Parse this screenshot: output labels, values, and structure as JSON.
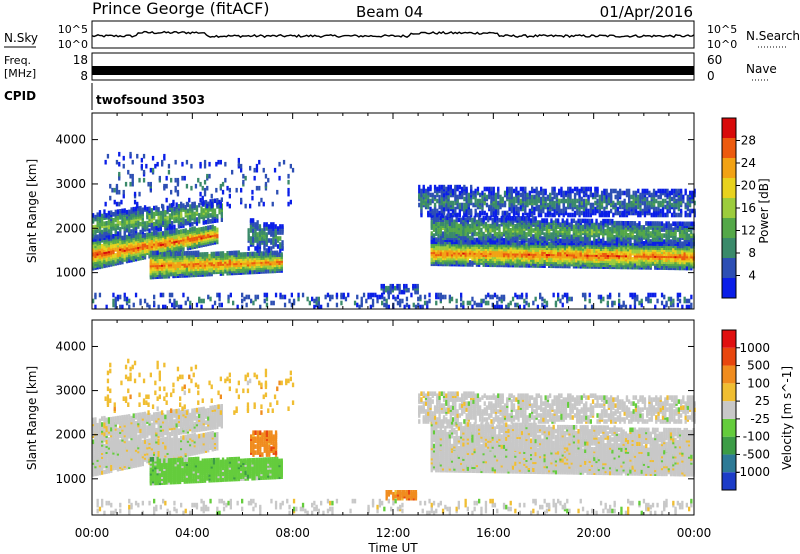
{
  "header": {
    "station": "Prince George (fitACF)",
    "beam": "Beam 04",
    "date": "01/Apr/2016"
  },
  "strip_labels": {
    "nsky": "N.Sky",
    "nsky_ticks": [
      "10^5",
      "10^0"
    ],
    "nsearch": "N.Search",
    "nsearch_ticks": [
      "10^5",
      "10^0"
    ],
    "freq_line1": "Freq.",
    "freq_line2": "[MHz]",
    "freq_ticks": [
      "18",
      "8"
    ],
    "nave": "Nave",
    "nave_ticks": [
      "60",
      "0"
    ],
    "cpid": "CPID",
    "cpid_value": "twofsound 3503"
  },
  "chart_data": [
    {
      "type": "heatmap",
      "quantity": "Power",
      "ylabel": "Slant Range [km]",
      "yticks": [
        "1000",
        "2000",
        "3000",
        "4000"
      ],
      "ylim": [
        180,
        4600
      ],
      "colorbar_label": "Power [dB]",
      "colorbar_ticks": [
        "4",
        "8",
        "12",
        "16",
        "20",
        "24",
        "28"
      ],
      "colorbar_range": [
        0,
        32
      ],
      "colormap": [
        "#0a1ee8",
        "#2d4fb4",
        "#3a8a6a",
        "#54a848",
        "#9ccc3c",
        "#e8d21e",
        "#f2a214",
        "#ec5a0e",
        "#d80a0a"
      ],
      "bands": [
        {
          "t0": 0.0,
          "t1": 5.0,
          "r_lo": 1100,
          "r_hi": 1750,
          "r_lo2": 1700,
          "r_hi2": 2050,
          "peak": 28,
          "dens": 0.95
        },
        {
          "t0": 0.0,
          "t1": 5.2,
          "r_lo": 1750,
          "r_hi": 2350,
          "r_lo2": 2200,
          "r_hi2": 2650,
          "peak": 14,
          "dens": 0.7
        },
        {
          "t0": 2.3,
          "t1": 7.6,
          "r_lo": 900,
          "r_hi": 1450,
          "r_lo2": 1050,
          "r_hi2": 1450,
          "peak": 26,
          "dens": 0.95
        },
        {
          "t0": 6.2,
          "t1": 7.6,
          "r_lo": 1500,
          "r_hi": 2200,
          "r_lo2": 1500,
          "r_hi2": 2050,
          "peak": 10,
          "dens": 0.55
        },
        {
          "t0": 13.5,
          "t1": 24.0,
          "r_lo": 1200,
          "r_hi": 1700,
          "r_lo2": 1100,
          "r_hi2": 1650,
          "peak": 27,
          "dens": 0.95
        },
        {
          "t0": 13.5,
          "t1": 24.0,
          "r_lo": 1700,
          "r_hi": 2300,
          "r_lo2": 1650,
          "r_hi2": 2100,
          "peak": 13,
          "dens": 0.75
        },
        {
          "t0": 13.0,
          "t1": 24.0,
          "r_lo": 2300,
          "r_hi": 2950,
          "r_lo2": 2300,
          "r_hi2": 2850,
          "peak": 9,
          "dens": 0.55
        },
        {
          "t0": 11.5,
          "t1": 13.0,
          "r_lo": 560,
          "r_hi": 700,
          "r_lo2": 560,
          "r_hi2": 700,
          "peak": 9,
          "dens": 0.6
        },
        {
          "t0": 0.5,
          "t1": 8.0,
          "r_lo": 2500,
          "r_hi": 3700,
          "r_lo2": 2500,
          "r_hi2": 3500,
          "peak": 7,
          "dens": 0.08
        },
        {
          "t0": 0.0,
          "t1": 24.0,
          "r_lo": 180,
          "r_hi": 520,
          "r_lo2": 180,
          "r_hi2": 520,
          "peak": 8,
          "dens": 0.18
        }
      ]
    },
    {
      "type": "heatmap",
      "quantity": "Velocity",
      "ylabel": "Slant Range [km]",
      "yticks": [
        "1000",
        "2000",
        "3000",
        "4000"
      ],
      "ylim": [
        180,
        4600
      ],
      "colorbar_label": "Velocity [m s^-1]",
      "colorbar_ticks": [
        "1000",
        "500",
        "100",
        "25",
        "-25",
        "-100",
        "-500",
        "-1000"
      ],
      "colormap": [
        "#1c3cc8",
        "#2d7a96",
        "#3c9c46",
        "#64cc3c",
        "#c8c8c8",
        "#f0be32",
        "#f08c1e",
        "#e8460e",
        "#e01010"
      ],
      "bands": [
        {
          "t0": 0.0,
          "t1": 5.0,
          "r_lo": 1100,
          "r_hi": 1750,
          "r_lo2": 1700,
          "r_hi2": 2050,
          "peak": 4,
          "dens": 0.95
        },
        {
          "t0": 0.0,
          "t1": 5.2,
          "r_lo": 1750,
          "r_hi": 2350,
          "r_lo2": 2200,
          "r_hi2": 2650,
          "peak": 4,
          "dens": 0.8
        },
        {
          "t0": 2.3,
          "t1": 7.6,
          "r_lo": 900,
          "r_hi": 1450,
          "r_lo2": 1050,
          "r_hi2": 1450,
          "peak": 3,
          "dens": 0.95
        },
        {
          "t0": 6.3,
          "t1": 7.3,
          "r_lo": 1550,
          "r_hi": 2050,
          "r_lo2": 1550,
          "r_hi2": 2050,
          "peak": 6,
          "dens": 0.7
        },
        {
          "t0": 13.5,
          "t1": 24.0,
          "r_lo": 1200,
          "r_hi": 1700,
          "r_lo2": 1100,
          "r_hi2": 1650,
          "peak": 4,
          "dens": 0.95
        },
        {
          "t0": 13.5,
          "t1": 24.0,
          "r_lo": 1700,
          "r_hi": 2300,
          "r_lo2": 1650,
          "r_hi2": 2100,
          "peak": 4,
          "dens": 0.75
        },
        {
          "t0": 13.0,
          "t1": 24.0,
          "r_lo": 2300,
          "r_hi": 2950,
          "r_lo2": 2300,
          "r_hi2": 2850,
          "peak": 4,
          "dens": 0.55
        },
        {
          "t0": 11.7,
          "t1": 12.9,
          "r_lo": 560,
          "r_hi": 700,
          "r_lo2": 560,
          "r_hi2": 700,
          "peak": 6,
          "dens": 0.8
        },
        {
          "t0": 0.5,
          "t1": 8.0,
          "r_lo": 2500,
          "r_hi": 3700,
          "r_lo2": 2500,
          "r_hi2": 3500,
          "peak": 5,
          "dens": 0.06
        },
        {
          "t0": 0.0,
          "t1": 24.0,
          "r_lo": 180,
          "r_hi": 520,
          "r_lo2": 180,
          "r_hi2": 520,
          "peak": 4,
          "dens": 0.15
        }
      ]
    }
  ],
  "x_axis": {
    "label": "Time UT",
    "range_hours": [
      0,
      24
    ],
    "ticks": [
      "00:00",
      "04:00",
      "08:00",
      "12:00",
      "16:00",
      "20:00",
      "00:00"
    ]
  }
}
